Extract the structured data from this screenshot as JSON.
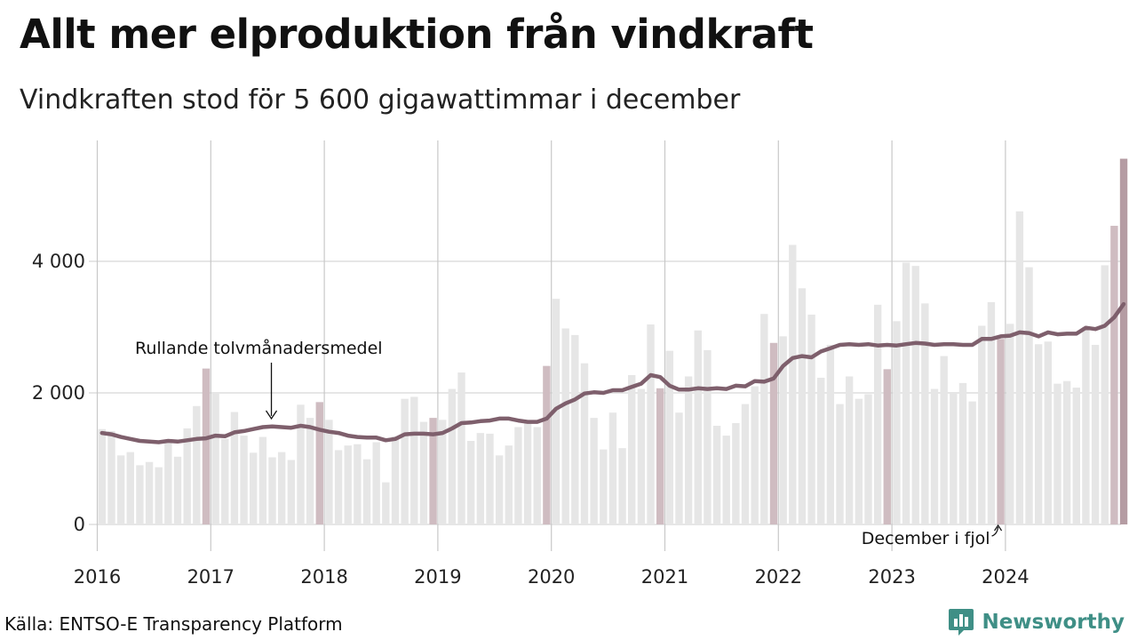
{
  "title": "Allt mer elproduktion från vindkraft",
  "subtitle": "Vindkraften stod för 5 600 gigawattimmar i december",
  "source": "Källa: ENTSO-E Transparency Platform",
  "brand": {
    "name": "Newsworthy",
    "icon": "bar-chart-speech-bubble-icon",
    "color": "#3f8f86"
  },
  "colors": {
    "bar": "#e6e6e6",
    "december_bar": "#cfbcc1",
    "latest_bar": "#b59ca3",
    "line": "#7e5f6c",
    "grid": "#dddddd",
    "vline": "#c8c8c8"
  },
  "chart_data": {
    "type": "bar",
    "title": "Allt mer elproduktion från vindkraft",
    "subtitle": "Vindkraften stod för 5 600 gigawattimmar i december",
    "xlabel": "",
    "ylabel": "",
    "ylim": [
      -400,
      5800
    ],
    "yticks": [
      0,
      2000,
      4000
    ],
    "ytick_labels": [
      "0",
      "2 000",
      "4 000"
    ],
    "xticks": [
      "2016",
      "2017",
      "2018",
      "2019",
      "2020",
      "2021",
      "2022",
      "2023",
      "2024"
    ],
    "start": "2016-01",
    "grid": true,
    "series": [
      {
        "values": [
          1450,
          1420,
          1050,
          1100,
          900,
          950,
          870,
          1250,
          1030,
          1460,
          1800,
          2370,
          2000,
          1300,
          1710,
          1350,
          1090,
          1330,
          1020,
          1100,
          980,
          1820,
          1620,
          1860,
          1590,
          1130,
          1200,
          1220,
          990,
          1250,
          640,
          1340,
          1910,
          1940,
          1560,
          1620,
          1590,
          2060,
          2310,
          1270,
          1390,
          1380,
          1050,
          1200,
          1480,
          1560,
          1480,
          2410,
          3430,
          2980,
          2880,
          2450,
          1620,
          1140,
          1700,
          1160,
          2270,
          2060,
          3040,
          2070,
          2640,
          1700,
          2250,
          2950,
          2650,
          1500,
          1350,
          1540,
          1830,
          2100,
          3200,
          2760,
          2860,
          4250,
          3590,
          3190,
          2230,
          2730,
          1830,
          2250,
          1910,
          1980,
          3340,
          2360,
          3090,
          3980,
          3930,
          3360,
          2060,
          2560,
          2000,
          2150,
          1870,
          3020,
          3380,
          2820,
          3050,
          4760,
          3910,
          2740,
          2780,
          2140,
          2180,
          2080,
          3000,
          2730,
          3940,
          4540,
          5560
        ]
      },
      {
        "name": "Rullande tolvmånadersmedel",
        "values": [
          1390,
          1370,
          1330,
          1300,
          1270,
          1260,
          1250,
          1270,
          1260,
          1280,
          1300,
          1310,
          1350,
          1340,
          1400,
          1420,
          1450,
          1480,
          1490,
          1480,
          1470,
          1500,
          1480,
          1440,
          1410,
          1390,
          1350,
          1330,
          1320,
          1320,
          1280,
          1300,
          1370,
          1380,
          1380,
          1370,
          1390,
          1460,
          1540,
          1550,
          1570,
          1580,
          1610,
          1610,
          1580,
          1560,
          1560,
          1610,
          1760,
          1840,
          1900,
          1990,
          2010,
          2000,
          2040,
          2040,
          2090,
          2140,
          2270,
          2240,
          2110,
          2050,
          2050,
          2070,
          2060,
          2070,
          2060,
          2110,
          2100,
          2180,
          2170,
          2220,
          2410,
          2530,
          2560,
          2540,
          2630,
          2680,
          2730,
          2740,
          2730,
          2740,
          2720,
          2730,
          2720,
          2740,
          2760,
          2750,
          2730,
          2740,
          2740,
          2730,
          2730,
          2820,
          2820,
          2860,
          2870,
          2920,
          2910,
          2860,
          2920,
          2890,
          2900,
          2900,
          2990,
          2970,
          3020,
          3150,
          3350
        ]
      }
    ],
    "annotations": [
      {
        "text": "Rullande tolvmånadersmedel",
        "target": "2017-07"
      },
      {
        "text": "December i fjol",
        "target": "2023-12"
      }
    ]
  }
}
